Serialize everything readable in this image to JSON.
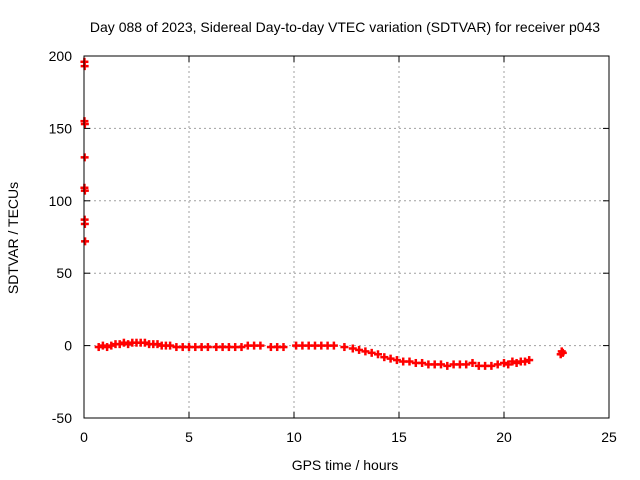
{
  "chart_data": {
    "type": "scatter",
    "title": "Day 088 of 2023, Sidereal Day-to-day VTEC variation (SDTVAR) for receiver p043",
    "xlabel": "GPS time / hours",
    "ylabel": "SDTVAR / TECUs",
    "xlim": [
      0,
      25
    ],
    "ylim": [
      -50,
      200
    ],
    "xticks": [
      0,
      5,
      10,
      15,
      20,
      25
    ],
    "yticks": [
      -50,
      0,
      50,
      100,
      150,
      200
    ],
    "grid": true,
    "marker": "+",
    "color": "#ff0000",
    "series": [
      {
        "name": "SDTVAR",
        "points": [
          [
            0.02,
            196
          ],
          [
            0.03,
            193
          ],
          [
            0.02,
            155
          ],
          [
            0.04,
            153
          ],
          [
            0.03,
            130
          ],
          [
            0.02,
            109
          ],
          [
            0.04,
            107
          ],
          [
            0.03,
            87
          ],
          [
            0.04,
            84
          ],
          [
            0.05,
            72
          ],
          [
            0.7,
            -1
          ],
          [
            0.9,
            0
          ],
          [
            1.1,
            -1
          ],
          [
            1.3,
            0
          ],
          [
            1.5,
            1
          ],
          [
            1.7,
            1
          ],
          [
            1.9,
            2
          ],
          [
            2.1,
            1
          ],
          [
            2.3,
            2
          ],
          [
            2.5,
            2
          ],
          [
            2.7,
            2
          ],
          [
            2.9,
            2
          ],
          [
            3.1,
            1
          ],
          [
            3.3,
            1
          ],
          [
            3.5,
            1
          ],
          [
            3.7,
            0
          ],
          [
            3.9,
            0
          ],
          [
            4.1,
            0
          ],
          [
            4.4,
            -1
          ],
          [
            4.7,
            -1
          ],
          [
            5.0,
            -1
          ],
          [
            5.3,
            -1
          ],
          [
            5.6,
            -1
          ],
          [
            5.9,
            -1
          ],
          [
            6.3,
            -1
          ],
          [
            6.6,
            -1
          ],
          [
            6.9,
            -1
          ],
          [
            7.2,
            -1
          ],
          [
            7.5,
            -1
          ],
          [
            7.8,
            0
          ],
          [
            8.1,
            0
          ],
          [
            8.4,
            0
          ],
          [
            8.9,
            -1
          ],
          [
            9.2,
            -1
          ],
          [
            9.5,
            -1
          ],
          [
            10.1,
            0
          ],
          [
            10.4,
            0
          ],
          [
            10.7,
            0
          ],
          [
            11.0,
            0
          ],
          [
            11.3,
            0
          ],
          [
            11.6,
            0
          ],
          [
            11.9,
            0
          ],
          [
            12.4,
            -1
          ],
          [
            12.8,
            -2
          ],
          [
            13.1,
            -3
          ],
          [
            13.4,
            -4
          ],
          [
            13.7,
            -5
          ],
          [
            14.0,
            -6
          ],
          [
            14.3,
            -8
          ],
          [
            14.6,
            -9
          ],
          [
            14.9,
            -10
          ],
          [
            15.2,
            -11
          ],
          [
            15.5,
            -11
          ],
          [
            15.8,
            -12
          ],
          [
            16.1,
            -12
          ],
          [
            16.4,
            -13
          ],
          [
            16.7,
            -13
          ],
          [
            17.0,
            -13
          ],
          [
            17.3,
            -14
          ],
          [
            17.6,
            -13
          ],
          [
            17.9,
            -13
          ],
          [
            18.2,
            -13
          ],
          [
            18.5,
            -12
          ],
          [
            18.8,
            -14
          ],
          [
            19.1,
            -14
          ],
          [
            19.4,
            -14
          ],
          [
            19.7,
            -13
          ],
          [
            20.0,
            -12
          ],
          [
            20.2,
            -13
          ],
          [
            20.4,
            -11
          ],
          [
            20.6,
            -12
          ],
          [
            20.8,
            -11
          ],
          [
            21.0,
            -11
          ],
          [
            21.2,
            -10
          ],
          [
            22.7,
            -6
          ],
          [
            22.75,
            -4
          ],
          [
            22.8,
            -5
          ]
        ]
      }
    ]
  }
}
